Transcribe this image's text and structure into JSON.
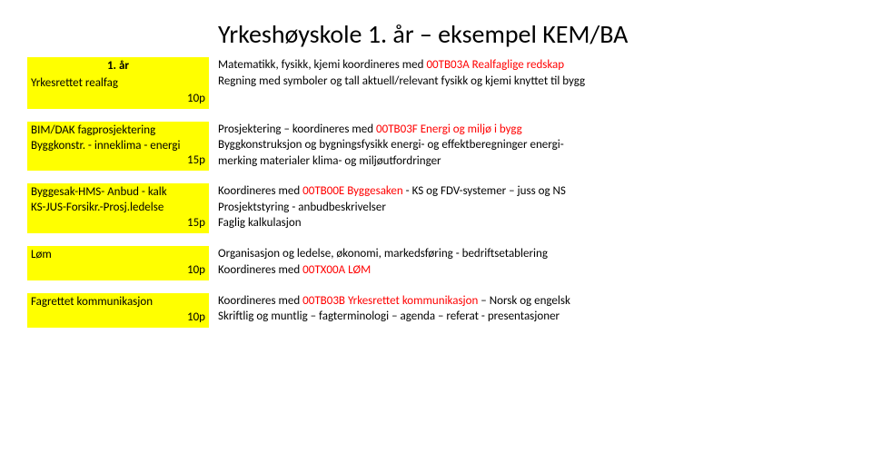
{
  "title": "Yrkeshøyskole 1. år – eksempel KEM/BA",
  "blocks": [
    {
      "left": {
        "header": "1. år",
        "line1": "Yrkesrettet realfag",
        "pts": "10p"
      },
      "right": [
        {
          "pre": "Matematikk, fysikk, kjemi koordineres med ",
          "red": "00TB03A Realfaglige redskap",
          "post": ""
        },
        {
          "pre": "Regning med symboler og tall aktuell/relevant fysikk og kjemi knyttet til bygg",
          "red": "",
          "post": ""
        }
      ]
    },
    {
      "left": {
        "line1": "BIM/DAK fagprosjektering",
        "line2": "Byggkonstr. - inneklima - energi",
        "pts": "15p"
      },
      "right": [
        {
          "pre": "Prosjektering – koordineres med ",
          "red": "00TB03F Energi og miljø i bygg",
          "post": ""
        },
        {
          "pre": "Byggkonstruksjon og bygningsfysikk energi- og effektberegninger energi-",
          "red": "",
          "post": ""
        },
        {
          "pre": "merking materialer klima- og miljøutfordringer",
          "red": "",
          "post": ""
        }
      ]
    },
    {
      "left": {
        "line1": "Byggesak-HMS- Anbud - kalk",
        "line2": "KS-JUS-Forsikr.-Prosj.ledelse",
        "pts": "15p"
      },
      "right": [
        {
          "pre": "Koordineres med ",
          "red": "00TB00E Byggesaken",
          "post": " - KS og FDV-systemer – juss og NS"
        },
        {
          "pre": "Prosjektstyring - anbudbeskrivelser",
          "red": "",
          "post": ""
        },
        {
          "pre": "Faglig kalkulasjon",
          "red": "",
          "post": ""
        }
      ]
    },
    {
      "left": {
        "line1": "Løm",
        "pts": "10p"
      },
      "right": [
        {
          "pre": "Organisasjon og ledelse, økonomi, markedsføring - bedriftsetablering",
          "red": "",
          "post": ""
        },
        {
          "pre": "Koordineres med ",
          "red": "00TX00A LØM",
          "post": ""
        }
      ]
    },
    {
      "left": {
        "line1": "Fagrettet kommunikasjon",
        "pts": "10p"
      },
      "right": [
        {
          "pre": "Koordineres med ",
          "red": "00TB03B Yrkesrettet kommunikasjon",
          "post": " – Norsk og engelsk"
        },
        {
          "pre": "Skriftlig og muntlig – fagterminologi – agenda – referat - presentasjoner",
          "red": "",
          "post": ""
        }
      ]
    }
  ]
}
